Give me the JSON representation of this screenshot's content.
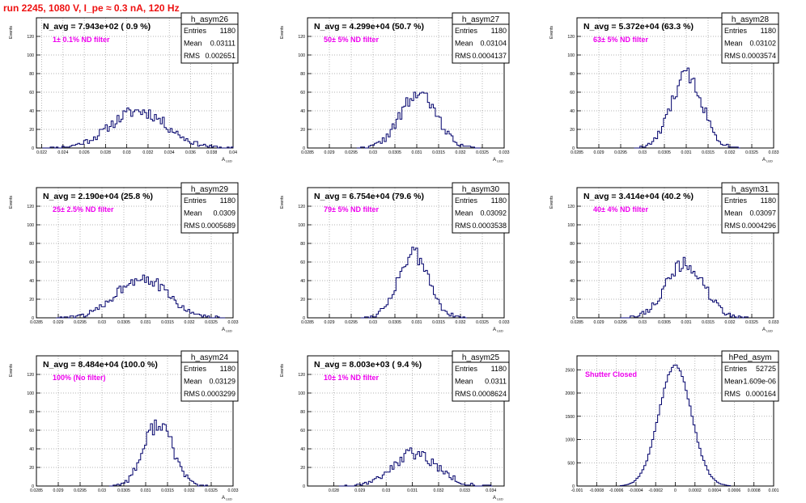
{
  "page": {
    "title": "run 2245,  1080 V, I_pe ≈ 0.3 nA, 120 Hz"
  },
  "chart_data": [
    {
      "type": "bar",
      "name": "h_asym26",
      "stats": [
        [
          "Entries",
          "1180"
        ],
        [
          "Mean",
          "0.03111"
        ],
        [
          "RMS",
          "0.002651"
        ]
      ],
      "navg": "N_avg = 7.943e+02 ( 0.9 %)",
      "filter": "1± 0.1% ND filter",
      "ylabel": "Events",
      "xlabel": "A",
      "xlim": [
        0.0215,
        0.04
      ],
      "ylim": [
        0,
        140
      ],
      "xticks": [
        0.022,
        0.024,
        0.026,
        0.028,
        0.03,
        0.032,
        0.034,
        0.036,
        0.038,
        0.04
      ],
      "xtick_labels": [
        "0.022",
        "0.024",
        "0.026",
        "0.028",
        "0.03",
        "0.032",
        "0.034",
        "0.036",
        "0.038",
        "0.04"
      ],
      "yticks": [
        0,
        20,
        40,
        60,
        80,
        100,
        120
      ],
      "grid": true,
      "dist": {
        "mean": 0.03111,
        "rms": 0.002651,
        "peak": 40,
        "seed": 11
      }
    },
    {
      "type": "bar",
      "name": "h_asym27",
      "stats": [
        [
          "Entries",
          "1180"
        ],
        [
          "Mean",
          "0.03104"
        ],
        [
          "RMS",
          "0.0004137"
        ]
      ],
      "navg": "N_avg = 4.299e+04 (50.7 %)",
      "filter": "50± 5% ND filter",
      "ylabel": "Events",
      "xlabel": "A",
      "xlim": [
        0.0285,
        0.033
      ],
      "ylim": [
        0,
        140
      ],
      "xticks": [
        0.0285,
        0.029,
        0.0295,
        0.03,
        0.0305,
        0.031,
        0.0315,
        0.032,
        0.0325,
        0.033
      ],
      "xtick_labels": [
        "0.0285",
        "0.029",
        "0.0295",
        "0.03",
        "0.0305",
        "0.031",
        "0.0315",
        "0.032",
        "0.0325",
        "0.033"
      ],
      "yticks": [
        0,
        20,
        40,
        60,
        80,
        100,
        120
      ],
      "grid": true,
      "dist": {
        "mean": 0.03104,
        "rms": 0.0004137,
        "peak": 58,
        "seed": 22
      }
    },
    {
      "type": "bar",
      "name": "h_asym28",
      "stats": [
        [
          "Entries",
          "1180"
        ],
        [
          "Mean",
          "0.03102"
        ],
        [
          "RMS",
          "0.0003574"
        ]
      ],
      "navg": "N_avg = 5.372e+04 (63.3 %)",
      "filter": "63± 5% ND filter",
      "ylabel": "Events",
      "xlabel": "A",
      "xlim": [
        0.0285,
        0.033
      ],
      "ylim": [
        0,
        140
      ],
      "xticks": [
        0.0285,
        0.029,
        0.0295,
        0.03,
        0.0305,
        0.031,
        0.0315,
        0.032,
        0.0325,
        0.033
      ],
      "xtick_labels": [
        "0.0285",
        "0.029",
        "0.0295",
        "0.03",
        "0.0305",
        "0.031",
        "0.0315",
        "0.032",
        "0.0325",
        "0.033"
      ],
      "yticks": [
        0,
        20,
        40,
        60,
        80,
        100,
        120
      ],
      "grid": true,
      "dist": {
        "mean": 0.03102,
        "rms": 0.0003574,
        "peak": 78,
        "seed": 33
      }
    },
    {
      "type": "bar",
      "name": "h_asym29",
      "stats": [
        [
          "Entries",
          "1180"
        ],
        [
          "Mean",
          "0.0309"
        ],
        [
          "RMS",
          "0.0005689"
        ]
      ],
      "navg": "N_avg = 2.190e+04 (25.8 %)",
      "filter": "25± 2.5% ND filter",
      "ylabel": "Events",
      "xlabel": "A",
      "xlim": [
        0.0285,
        0.033
      ],
      "ylim": [
        0,
        140
      ],
      "xticks": [
        0.0285,
        0.029,
        0.0295,
        0.03,
        0.0305,
        0.031,
        0.0315,
        0.032,
        0.0325,
        0.033
      ],
      "xtick_labels": [
        "0.0285",
        "0.029",
        "0.0295",
        "0.03",
        "0.0305",
        "0.031",
        "0.0315",
        "0.032",
        "0.0325",
        "0.033"
      ],
      "yticks": [
        0,
        20,
        40,
        60,
        80,
        100,
        120
      ],
      "grid": true,
      "dist": {
        "mean": 0.0309,
        "rms": 0.0005689,
        "peak": 44,
        "seed": 44
      }
    },
    {
      "type": "bar",
      "name": "h_asym30",
      "stats": [
        [
          "Entries",
          "1180"
        ],
        [
          "Mean",
          "0.03092"
        ],
        [
          "RMS",
          "0.0003538"
        ]
      ],
      "navg": "N_avg = 6.754e+04 (79.6 %)",
      "filter": "79± 5% ND filter",
      "ylabel": "Events",
      "xlabel": "A",
      "xlim": [
        0.0285,
        0.033
      ],
      "ylim": [
        0,
        140
      ],
      "xticks": [
        0.0285,
        0.029,
        0.0295,
        0.03,
        0.0305,
        0.031,
        0.0315,
        0.032,
        0.0325,
        0.033
      ],
      "xtick_labels": [
        "0.0285",
        "0.029",
        "0.0295",
        "0.03",
        "0.0305",
        "0.031",
        "0.0315",
        "0.032",
        "0.0325",
        "0.033"
      ],
      "yticks": [
        0,
        20,
        40,
        60,
        80,
        100,
        120
      ],
      "grid": true,
      "dist": {
        "mean": 0.03092,
        "rms": 0.0003538,
        "peak": 68,
        "seed": 55
      }
    },
    {
      "type": "bar",
      "name": "h_asym31",
      "stats": [
        [
          "Entries",
          "1180"
        ],
        [
          "Mean",
          "0.03097"
        ],
        [
          "RMS",
          "0.0004296"
        ]
      ],
      "navg": "N_avg = 3.414e+04 (40.2 %)",
      "filter": "40± 4% ND filter",
      "ylabel": "Events",
      "xlabel": "A",
      "xlim": [
        0.0285,
        0.033
      ],
      "ylim": [
        0,
        140
      ],
      "xticks": [
        0.0285,
        0.029,
        0.0295,
        0.03,
        0.0305,
        0.031,
        0.0315,
        0.032,
        0.0325,
        0.033
      ],
      "xtick_labels": [
        "0.0285",
        "0.029",
        "0.0295",
        "0.03",
        "0.0305",
        "0.031",
        "0.0315",
        "0.032",
        "0.0325",
        "0.033"
      ],
      "yticks": [
        0,
        20,
        40,
        60,
        80,
        100,
        120
      ],
      "grid": true,
      "dist": {
        "mean": 0.03097,
        "rms": 0.0004296,
        "peak": 58,
        "seed": 66
      }
    },
    {
      "type": "bar",
      "name": "h_asym24",
      "stats": [
        [
          "Entries",
          "1180"
        ],
        [
          "Mean",
          "0.03129"
        ],
        [
          "RMS",
          "0.0003299"
        ]
      ],
      "navg": "N_avg = 8.484e+04 (100.0 %)",
      "filter": "100% (No filter)",
      "ylabel": "Events",
      "xlabel": "A",
      "xlim": [
        0.0285,
        0.033
      ],
      "ylim": [
        0,
        140
      ],
      "xticks": [
        0.0285,
        0.029,
        0.0295,
        0.03,
        0.0305,
        0.031,
        0.0315,
        0.032,
        0.0325,
        0.033
      ],
      "xtick_labels": [
        "0.0285",
        "0.029",
        "0.0295",
        "0.03",
        "0.0305",
        "0.031",
        "0.0315",
        "0.032",
        "0.0325",
        "0.033"
      ],
      "yticks": [
        0,
        20,
        40,
        60,
        80,
        100,
        120
      ],
      "grid": true,
      "dist": {
        "mean": 0.03129,
        "rms": 0.0003299,
        "peak": 68,
        "seed": 77
      }
    },
    {
      "type": "bar",
      "name": "h_asym25",
      "stats": [
        [
          "Entries",
          "1180"
        ],
        [
          "Mean",
          "0.0311"
        ],
        [
          "RMS",
          "0.0008624"
        ]
      ],
      "navg": "N_avg = 8.003e+03 ( 9.4 %)",
      "filter": "10± 1% ND filter",
      "ylabel": "Events",
      "xlabel": "A",
      "xlim": [
        0.027,
        0.0345
      ],
      "ylim": [
        0,
        140
      ],
      "xticks": [
        0.028,
        0.029,
        0.03,
        0.031,
        0.032,
        0.033,
        0.034
      ],
      "xtick_labels": [
        "0.028",
        "0.029",
        "0.03",
        "0.031",
        "0.032",
        "0.033",
        "0.034"
      ],
      "yticks": [
        0,
        20,
        40,
        60,
        80,
        100,
        120
      ],
      "grid": true,
      "dist": {
        "mean": 0.0311,
        "rms": 0.0008624,
        "peak": 35,
        "seed": 88
      }
    },
    {
      "type": "bar",
      "name": "hPed_asym",
      "stats": [
        [
          "Entries",
          "52725"
        ],
        [
          "Mean",
          "-1.609e-06"
        ],
        [
          "RMS",
          "0.000164"
        ]
      ],
      "navg": "",
      "filter": "Shutter Closed",
      "ylabel": "",
      "xlabel": "",
      "xlim": [
        -0.001,
        0.001
      ],
      "ylim": [
        0,
        2800
      ],
      "xticks": [
        -0.001,
        -0.0008,
        -0.0006,
        -0.0004,
        -0.0002,
        0,
        0.0002,
        0.0004,
        0.0006,
        0.0008,
        0.001
      ],
      "xtick_labels": [
        "-0.001",
        "-0.0008",
        "-0.0006",
        "-0.0004",
        "-0.0002",
        "0",
        "0.0002",
        "0.0004",
        "0.0006",
        "0.0008",
        "0.001"
      ],
      "yticks": [
        0,
        500,
        1000,
        1500,
        2000,
        2500
      ],
      "grid": true,
      "dist": {
        "mean": -1.609e-06,
        "rms": 0.000164,
        "peak": 2600,
        "seed": 99
      }
    }
  ],
  "colors": {
    "histogram": "#00006b",
    "filter_label": "#ee00ee",
    "title": "#ee1111",
    "grid": "#9a9a9a"
  }
}
